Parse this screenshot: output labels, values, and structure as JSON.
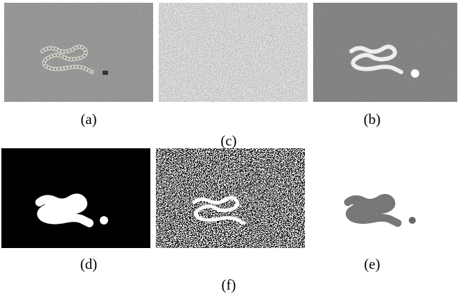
{
  "panels": [
    {
      "label": "(a)"
    },
    {
      "label": "(c)"
    },
    {
      "label": "(b)"
    },
    {
      "label": "(d)"
    },
    {
      "label": "(f)"
    },
    {
      "label": "(e)"
    }
  ]
}
